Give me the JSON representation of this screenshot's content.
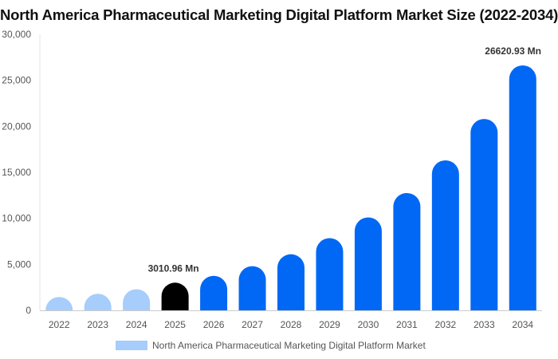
{
  "chart_data": {
    "type": "bar",
    "title": "North America Pharmaceutical Marketing Digital Platform Market Size (2022-2034)",
    "xlabel": "",
    "ylabel": "",
    "categories": [
      "2022",
      "2023",
      "2024",
      "2025",
      "2026",
      "2027",
      "2028",
      "2029",
      "2030",
      "2031",
      "2032",
      "2033",
      "2034"
    ],
    "series": [
      {
        "name": "North America Pharmaceutical Marketing Digital Platform Market",
        "values": [
          1450,
          1800,
          2300,
          3010.96,
          3750,
          4800,
          6100,
          7850,
          10100,
          12750,
          16300,
          20800,
          26620.93
        ]
      }
    ],
    "ylim": [
      0,
      30000
    ],
    "yticks": [
      0,
      5000,
      10000,
      15000,
      20000,
      25000,
      30000
    ],
    "ytick_labels": [
      "0",
      "5,000",
      "10,000",
      "15,000",
      "20,000",
      "25,000",
      "30,000"
    ],
    "annotations": [
      {
        "category": "2025",
        "text": "3010.96 Mn"
      },
      {
        "category": "2034",
        "text": "26620.93 Mn"
      }
    ],
    "bar_colors": [
      "#a6cdfb",
      "#a6cdfb",
      "#a6cdfb",
      "#000000",
      "#0068f5",
      "#0068f5",
      "#0068f5",
      "#0068f5",
      "#0068f5",
      "#0068f5",
      "#0068f5",
      "#0068f5",
      "#0068f5"
    ],
    "grid": false,
    "legend_position": "bottom"
  }
}
